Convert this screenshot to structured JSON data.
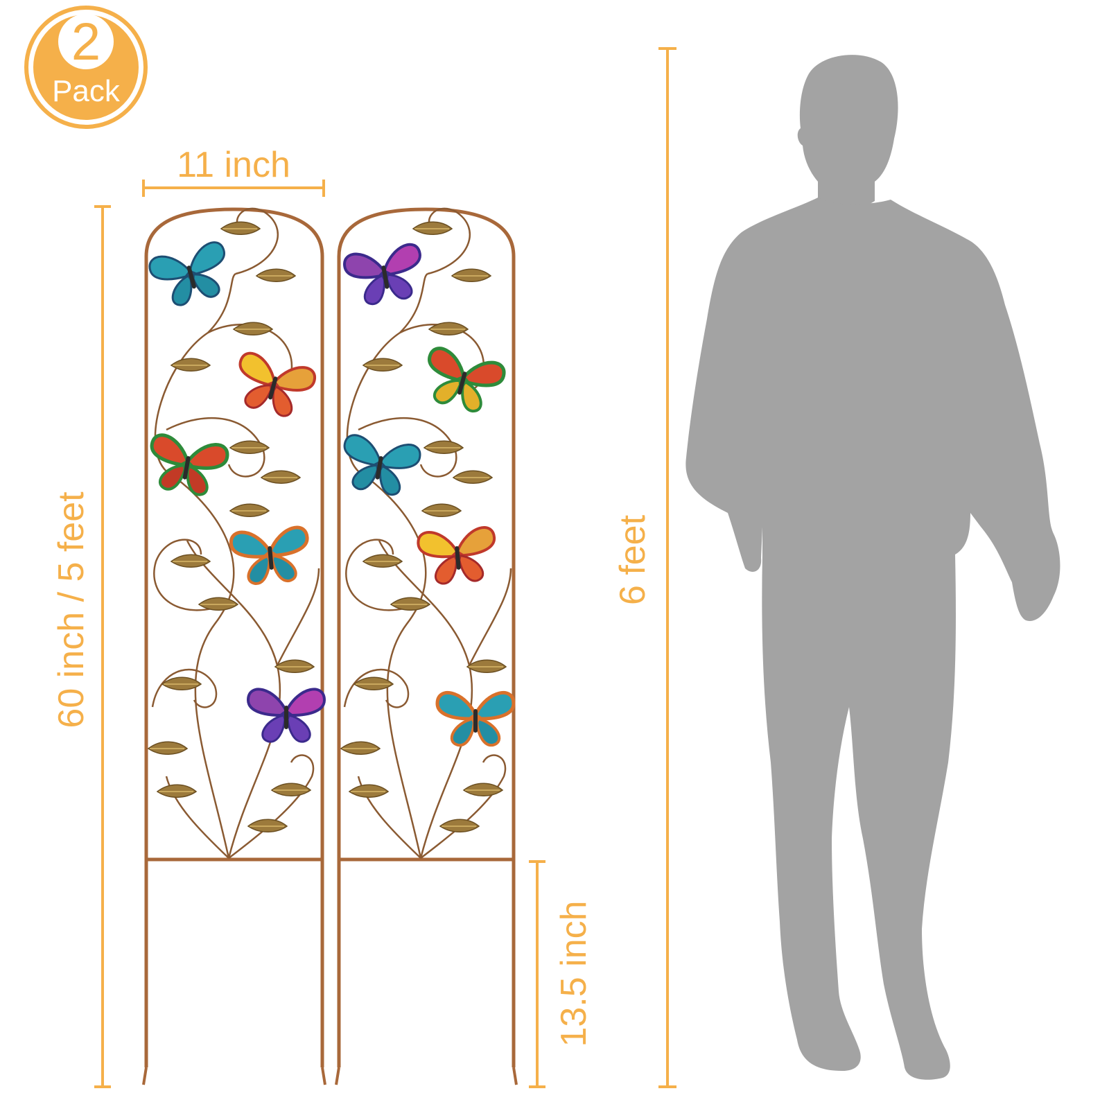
{
  "badge": {
    "number": "2",
    "word": "Pack"
  },
  "dimensions": {
    "width_label": "11 inch",
    "height_label": "60 inch / 5 feet",
    "stake_label": "13.5 inch",
    "person_label": "6 feet"
  },
  "colors": {
    "accent": "#f5b04a",
    "frame": "#a8683a",
    "silhouette": "#a3a3a3",
    "leaf": "#9c7a3c"
  },
  "butterflies": {
    "left": [
      "teal",
      "red-yellow",
      "green-red",
      "teal-orange",
      "purple"
    ],
    "right": [
      "purple",
      "green-red",
      "teal",
      "red-yellow",
      "teal-orange"
    ]
  }
}
